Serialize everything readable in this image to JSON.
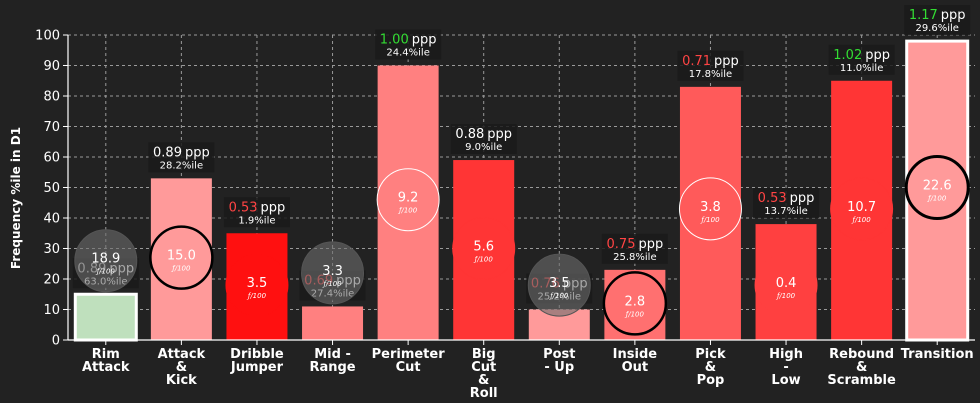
{
  "chart_data": {
    "type": "bar",
    "ylabel": "Frequency %ile in D1",
    "ylim": [
      0,
      100
    ],
    "yticks": [
      0,
      10,
      20,
      30,
      40,
      50,
      60,
      70,
      80,
      90,
      100
    ],
    "grid": true,
    "ppp_unit": "ppp",
    "circle_unit": "ƒ/100",
    "categories": [
      [
        "Rim",
        "Attack"
      ],
      [
        "Attack",
        "&",
        "Kick"
      ],
      [
        "Dribble",
        "Jumper"
      ],
      [
        "Mid -",
        "Range"
      ],
      [
        "Perimeter",
        "Cut"
      ],
      [
        "Big",
        "Cut",
        "&",
        "Roll"
      ],
      [
        "Post",
        "- Up"
      ],
      [
        "Inside",
        "Out"
      ],
      [
        "Pick",
        "&",
        "Pop"
      ],
      [
        "High",
        "-",
        "Low"
      ],
      [
        "Rebound",
        "&",
        "Scramble"
      ],
      [
        "Transition"
      ]
    ],
    "values": [
      15,
      53,
      35,
      11,
      90,
      59,
      10,
      23,
      83,
      38,
      85,
      98
    ],
    "ppp": [
      "0.89",
      "0.89",
      "0.53",
      "0.69",
      "1.00",
      "0.88",
      "0.76",
      "0.75",
      "0.71",
      "0.53",
      "1.02",
      "1.17"
    ],
    "ppp_pct": [
      "63.0%ile",
      "28.2%ile",
      "1.9%ile",
      "27.4%ile",
      "24.4%ile",
      "9.0%ile",
      "25.2%ile",
      "25.8%ile",
      "17.8%ile",
      "13.7%ile",
      "11.0%ile",
      "29.6%ile"
    ],
    "per100": [
      "18.9",
      "15.0",
      "3.5",
      "3.3",
      "9.2",
      "5.6",
      "3.5",
      "2.8",
      "3.8",
      "0.4",
      "10.7",
      "22.6"
    ],
    "circle_y": [
      26,
      27,
      18,
      22,
      46,
      30,
      18,
      12,
      43,
      18,
      43,
      50
    ],
    "bar_colors": [
      "#bfe0bd",
      "#ff9a9a",
      "#ff1010",
      "#ff8080",
      "#ff8080",
      "#ff3535",
      "#ff9a9a",
      "#ff7070",
      "#ff5a5a",
      "#ff4040",
      "#ff3535",
      "#ff9a9a"
    ],
    "bar_outline": [
      true,
      false,
      false,
      false,
      false,
      false,
      false,
      false,
      false,
      false,
      false,
      true
    ],
    "ppp_colors": [
      "#cccccc",
      "#ffffff",
      "#ff4444",
      "#ff4444",
      "#33dd33",
      "#ffffff",
      "#ff4444",
      "#ff4444",
      "#ff4444",
      "#ff4444",
      "#33dd33",
      "#33dd33"
    ],
    "circle_fills": [
      "rgba(110,110,110,0.6)",
      "#ff9a9a",
      "#ff1010",
      "rgba(110,110,110,0.6)",
      "#ff8080",
      "#ff3535",
      "rgba(110,110,110,0.6)",
      "#ff7070",
      "#ff5a5a",
      "#ff4040",
      "#ff3535",
      "#ff9a9a"
    ],
    "circle_strokes": [
      "#555555",
      "#000000",
      "#ff1010",
      "#555555",
      "#ffffff",
      "#ff3535",
      "#555555",
      "#000000",
      "#ffffff",
      "#ff4040",
      "#ff3535",
      "#000000"
    ],
    "circle_stroke_widths": [
      1,
      2.5,
      1,
      1,
      1,
      1,
      1,
      2.5,
      1,
      1,
      1,
      3
    ]
  }
}
